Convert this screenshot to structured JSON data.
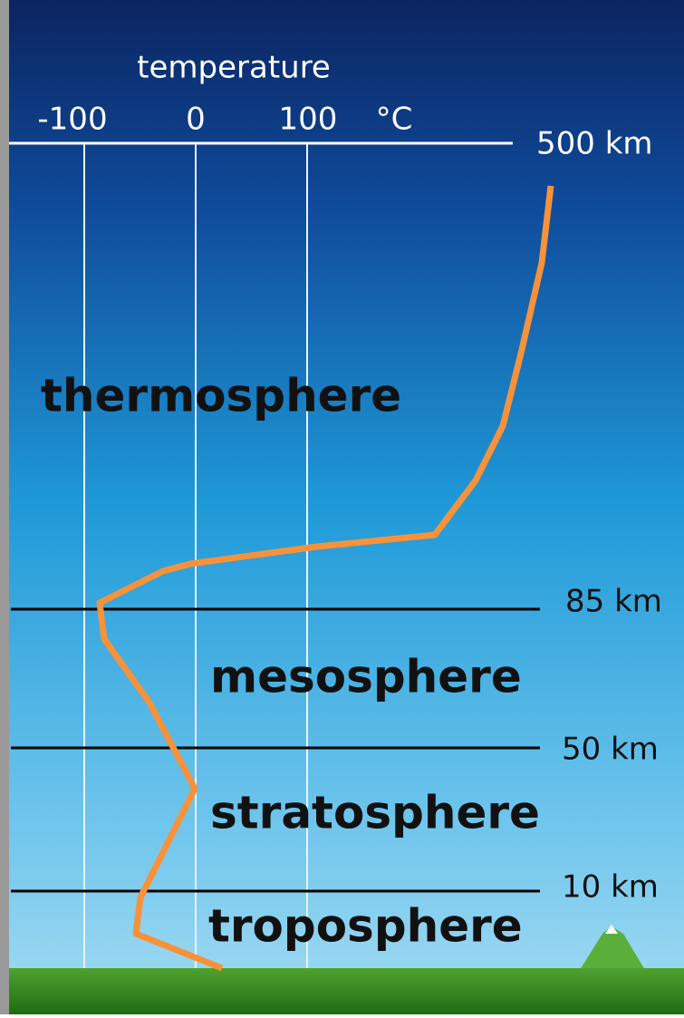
{
  "axis": {
    "title": "temperature",
    "ticks": [
      "-100",
      "0",
      "100"
    ],
    "unit": "°C"
  },
  "altitudes": [
    "500 km",
    "85 km",
    "50 km",
    "10 km"
  ],
  "layers": [
    "thermosphere",
    "mesosphere",
    "stratosphere",
    "troposphere"
  ]
}
